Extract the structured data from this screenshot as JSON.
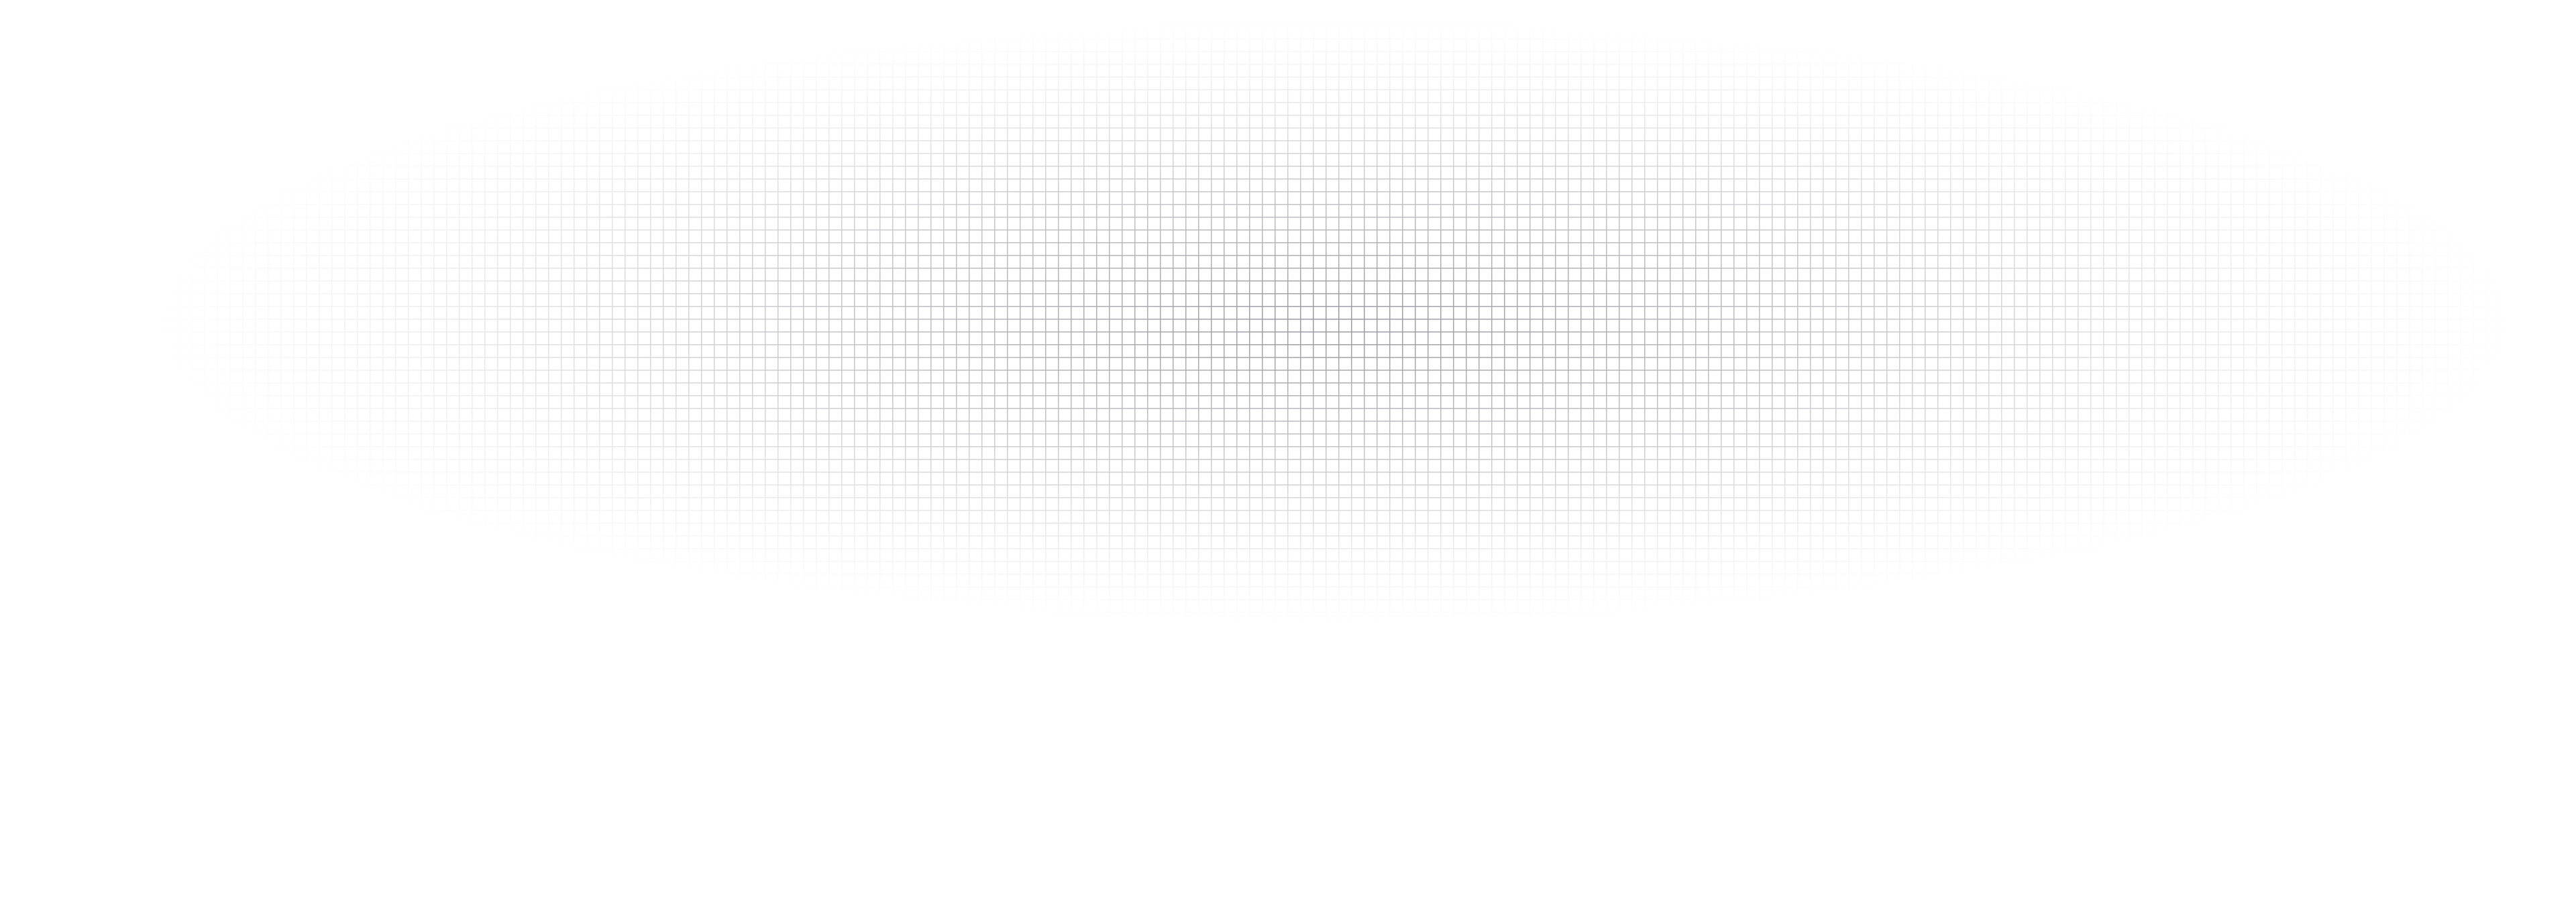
{
  "background": {
    "pattern": "grid",
    "line_color": "#9a98a0",
    "fade": "radial-ellipse"
  }
}
